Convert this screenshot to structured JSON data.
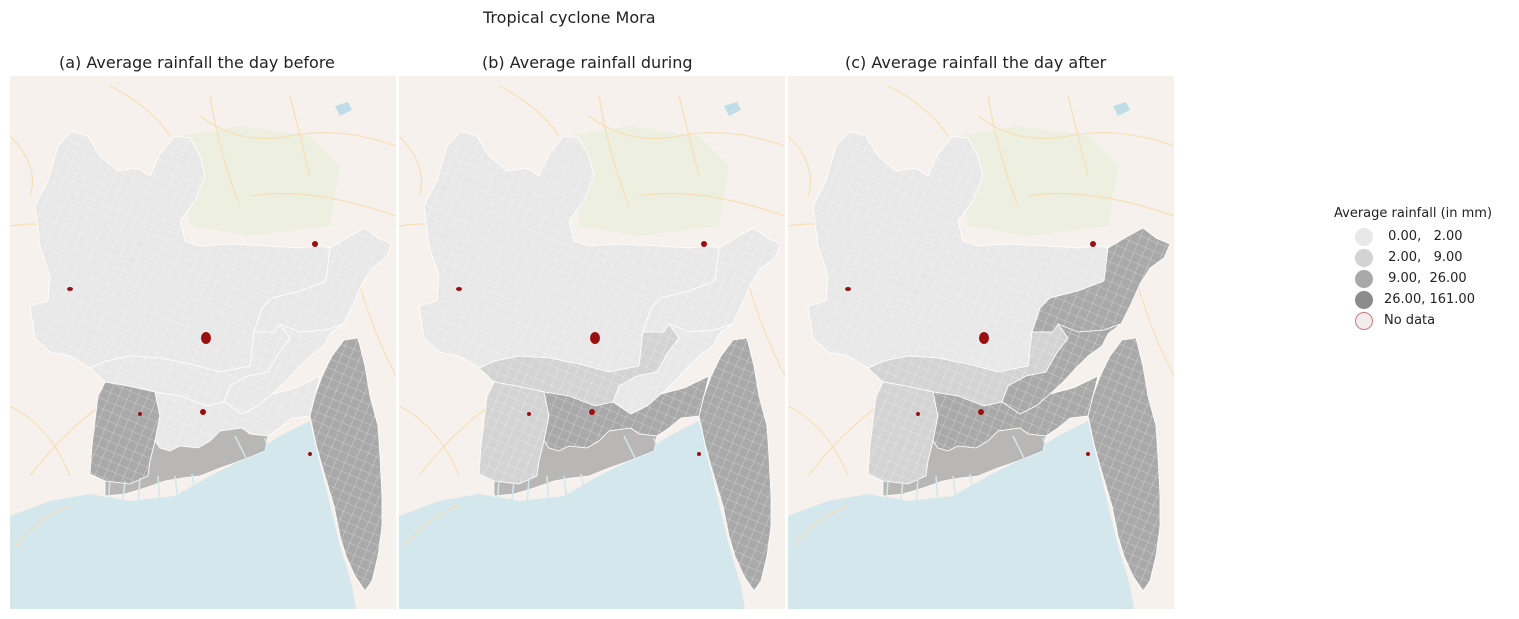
{
  "figure": {
    "suptitle": "Tropical cyclone Mora",
    "panels": [
      {
        "title": "(a) Average rainfall the day before",
        "levels": {
          "north": 1,
          "centre": 1,
          "southwest": 3,
          "delta": 1,
          "southeast": 3,
          "sylhet": 1,
          "east": 1
        }
      },
      {
        "title": "(b) Average rainfall during",
        "levels": {
          "north": 1,
          "centre": 2,
          "southwest": 2,
          "delta": 3,
          "southeast": 3,
          "sylhet": 1,
          "east": 1
        }
      },
      {
        "title": "(c) Average rainfall the day after",
        "levels": {
          "north": 1,
          "centre": 2,
          "southwest": 2,
          "delta": 3,
          "southeast": 3,
          "sylhet": 3,
          "east": 3
        }
      }
    ]
  },
  "legend": {
    "title": "Average rainfall (in mm)",
    "items": [
      {
        "label": " 0.00,   2.00",
        "color": "#e8e8e8",
        "border": "#e8e8e8"
      },
      {
        "label": " 2.00,   9.00",
        "color": "#d3d3d3",
        "border": "#d3d3d3"
      },
      {
        "label": " 9.00,  26.00",
        "color": "#a9a9a9",
        "border": "#a9a9a9"
      },
      {
        "label": "26.00, 161.00",
        "color": "#8c8c8c",
        "border": "#8c8c8c"
      },
      {
        "label": "No data",
        "color": "#f2ecec",
        "border": "#c97b7b"
      }
    ]
  },
  "colors": {
    "land": "#f6f1ec",
    "water": "#d3e7ec",
    "road": "#f8dcad",
    "no_data": "#9a1010"
  }
}
